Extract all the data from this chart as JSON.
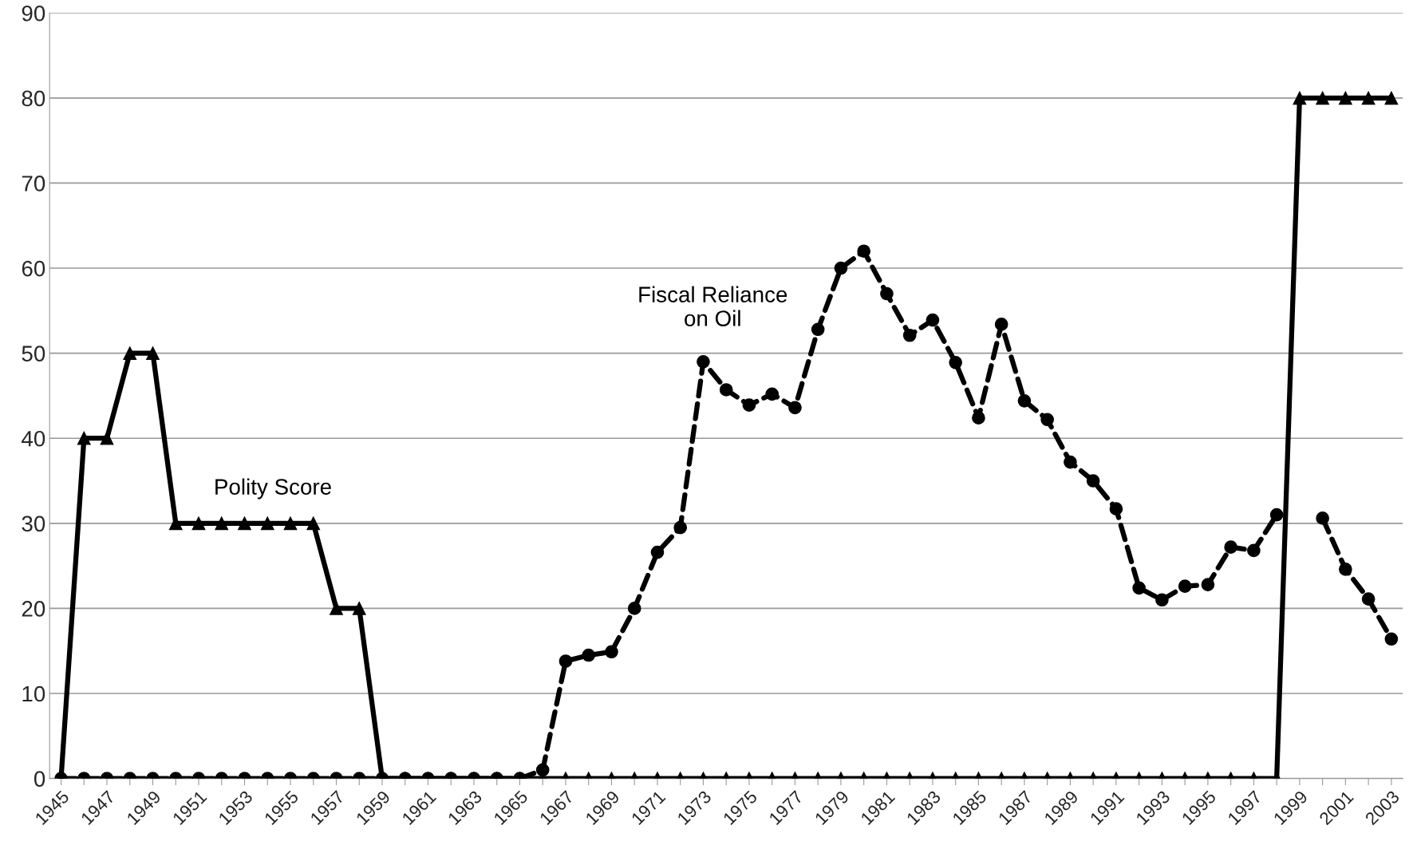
{
  "chart_data": {
    "type": "line",
    "categories": [
      "1945",
      null,
      "1947",
      null,
      "1949",
      null,
      "1951",
      null,
      "1953",
      null,
      "1955",
      null,
      "1957",
      null,
      "1959",
      null,
      "1961",
      null,
      "1963",
      null,
      "1965",
      null,
      "1967",
      null,
      "1969",
      null,
      "1971",
      null,
      "1973",
      null,
      "1975",
      null,
      "1977",
      null,
      "1979",
      null,
      "1981",
      null,
      "1983",
      null,
      "1985",
      null,
      "1987",
      null,
      "1989",
      null,
      "1991",
      null,
      "1993",
      null,
      "1995",
      null,
      "1997",
      null,
      "1999",
      null,
      "2001",
      null,
      "2003"
    ],
    "series": [
      {
        "name": "Polity Score",
        "color": "#000000",
        "marker": "triangle",
        "line_style": "solid",
        "values": [
          0,
          40,
          40,
          50,
          50,
          30,
          30,
          30,
          30,
          30,
          30,
          30,
          20,
          20,
          0,
          0,
          0,
          0,
          0,
          0,
          0,
          0,
          0,
          0,
          0,
          0,
          0,
          0,
          0,
          0,
          0,
          0,
          0,
          0,
          0,
          0,
          0,
          0,
          0,
          0,
          0,
          0,
          0,
          0,
          0,
          0,
          0,
          0,
          0,
          0,
          0,
          0,
          0,
          0,
          80,
          80,
          80,
          80,
          80
        ]
      },
      {
        "name": "Fiscal Reliance\non Oil",
        "color": "#000000",
        "marker": "circle",
        "line_style": "dashed",
        "values": [
          0,
          0,
          0,
          0,
          0,
          0,
          0,
          0,
          0,
          0,
          0,
          0,
          0,
          0,
          0,
          0,
          0,
          0,
          0,
          0,
          0,
          1,
          13.8,
          14.5,
          14.9,
          20,
          26.6,
          29.5,
          49,
          45.7,
          43.9,
          45.2,
          43.6,
          52.8,
          60,
          62,
          57,
          52.1,
          53.9,
          48.9,
          42.4,
          53.4,
          44.4,
          42.2,
          37.2,
          35,
          31.7,
          22.4,
          21,
          22.6,
          22.8,
          27.2,
          26.8,
          31,
          null,
          30.6,
          24.6,
          21.1,
          16.4
        ]
      }
    ],
    "ylim": [
      0,
      90
    ],
    "yticks": [
      0,
      10,
      20,
      30,
      40,
      50,
      60,
      70,
      80,
      90
    ],
    "grid": "y",
    "legend": false
  }
}
